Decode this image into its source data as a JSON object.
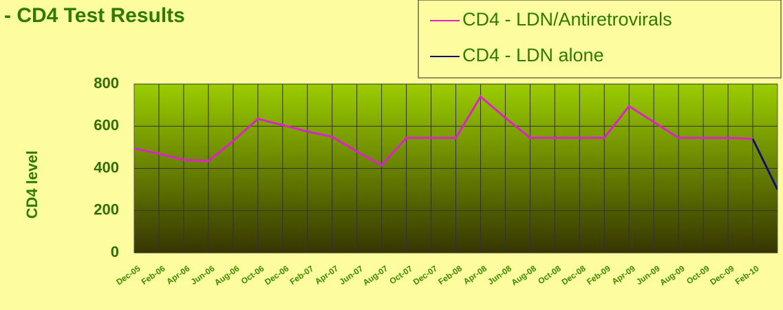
{
  "chart_data": {
    "type": "line",
    "title": "- CD4 Test Results",
    "y_label": "CD4 level",
    "categories": [
      "Dec-05",
      "Feb-06",
      "Apr-06",
      "Jun-06",
      "Aug-06",
      "Oct-06",
      "Dec-06",
      "Feb-07",
      "Apr-07",
      "Jun-07",
      "Aug-07",
      "Oct-07",
      "Dec-07",
      "Feb-08",
      "Apr-08",
      "Jun-08",
      "Aug-08",
      "Oct-08",
      "Dec-08",
      "Feb-09",
      "Apr-09",
      "Jun-09",
      "Aug-09",
      "Oct-09",
      "Dec-09",
      "Feb-10",
      null
    ],
    "series": [
      {
        "name": "CD4 - LDN/Antiretrovirals",
        "color": "#e020c8",
        "values": [
          495,
          470,
          440,
          435,
          530,
          635,
          605,
          575,
          550,
          480,
          415,
          545,
          545,
          545,
          740,
          640,
          545,
          545,
          545,
          545,
          695,
          620,
          545,
          545,
          545,
          540,
          null
        ]
      },
      {
        "name": "CD4 - LDN alone",
        "color": "#101070",
        "values": [
          null,
          null,
          null,
          null,
          null,
          null,
          null,
          null,
          null,
          null,
          null,
          null,
          null,
          null,
          null,
          null,
          null,
          null,
          null,
          null,
          null,
          null,
          null,
          null,
          null,
          540,
          300
        ]
      }
    ],
    "ylim": [
      0,
      800
    ],
    "yticks": [
      0,
      200,
      400,
      600,
      800
    ],
    "grid": true,
    "legend": "top-right"
  }
}
